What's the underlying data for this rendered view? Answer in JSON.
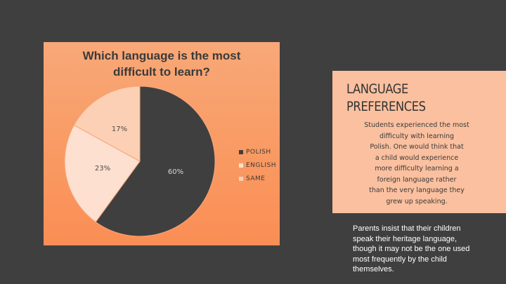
{
  "chart_data": {
    "type": "pie",
    "title": "Which language is the most difficult to learn?",
    "title_lines": [
      "Which language is the most",
      "difficult to learn?"
    ],
    "categories": [
      "POLISH",
      "ENGLISH",
      "SAME"
    ],
    "values": [
      60,
      23,
      17
    ],
    "data_labels": [
      "60%",
      "23%",
      "17%"
    ],
    "colors": [
      "#3f3f3f",
      "#fde0cf",
      "#fcd0b4"
    ],
    "legend": "right"
  },
  "info_card": {
    "title_lines": [
      "LANGUAGE",
      "PREFERENCES"
    ],
    "body_lines": [
      "Students experienced the most",
      "difficulty with learning",
      "Polish. One would think that",
      "a child would experience",
      "more difficulty learning a",
      "foreign language rather",
      "than the very language they",
      "grew up speaking."
    ]
  },
  "note": {
    "lines": [
      "Parents insist that their children",
      "speak their heritage language,",
      "though it may not be the one used",
      "most frequently by the child",
      "themselves."
    ]
  },
  "colors": {
    "background": "#3f3f3f",
    "chart_panel": "#f99a63",
    "card": "#fbc09f"
  }
}
